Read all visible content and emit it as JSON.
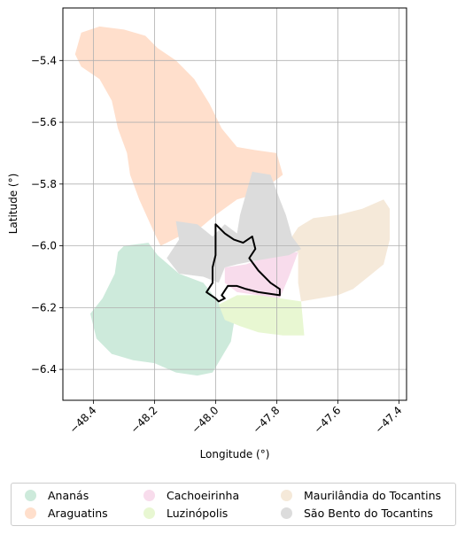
{
  "chart_data": {
    "type": "map",
    "xlabel": "Longitude (°)",
    "ylabel": "Latitude (°)",
    "xlim": [
      -48.5,
      -47.375
    ],
    "ylim": [
      -6.5,
      -5.23
    ],
    "x_ticks": [
      -48.4,
      -48.2,
      -48.0,
      -47.8,
      -47.6,
      -47.4
    ],
    "y_ticks": [
      -5.4,
      -5.6,
      -5.8,
      -6.0,
      -6.2,
      -6.4
    ],
    "x_tick_labels": [
      "−48.4",
      "−48.2",
      "−48.0",
      "−47.8",
      "−47.6",
      "−47.4"
    ],
    "y_tick_labels": [
      "−5.4",
      "−5.6",
      "−5.8",
      "−6.0",
      "−6.2",
      "−6.4"
    ],
    "grid": true,
    "legend_position": "bottom",
    "regions": [
      {
        "name": "Ananás",
        "color": "#cdeadb",
        "boundary": [
          [
            -48.3,
            -6.0
          ],
          [
            -48.22,
            -5.99
          ],
          [
            -48.19,
            -6.03
          ],
          [
            -48.12,
            -6.09
          ],
          [
            -48.04,
            -6.12
          ],
          [
            -48.0,
            -6.17
          ],
          [
            -47.98,
            -6.2
          ],
          [
            -47.94,
            -6.25
          ],
          [
            -47.95,
            -6.31
          ],
          [
            -47.98,
            -6.36
          ],
          [
            -48.01,
            -6.41
          ],
          [
            -48.06,
            -6.42
          ],
          [
            -48.13,
            -6.41
          ],
          [
            -48.2,
            -6.38
          ],
          [
            -48.27,
            -6.37
          ],
          [
            -48.34,
            -6.35
          ],
          [
            -48.39,
            -6.3
          ],
          [
            -48.41,
            -6.22
          ],
          [
            -48.37,
            -6.17
          ],
          [
            -48.33,
            -6.09
          ],
          [
            -48.32,
            -6.02
          ]
        ]
      },
      {
        "name": "Araguatins",
        "color": "#ffdfcc",
        "boundary": [
          [
            -48.46,
            -5.38
          ],
          [
            -48.44,
            -5.31
          ],
          [
            -48.38,
            -5.29
          ],
          [
            -48.3,
            -5.3
          ],
          [
            -48.23,
            -5.32
          ],
          [
            -48.19,
            -5.36
          ],
          [
            -48.13,
            -5.4
          ],
          [
            -48.07,
            -5.46
          ],
          [
            -48.02,
            -5.54
          ],
          [
            -47.98,
            -5.62
          ],
          [
            -47.93,
            -5.68
          ],
          [
            -47.87,
            -5.69
          ],
          [
            -47.8,
            -5.7
          ],
          [
            -47.78,
            -5.77
          ],
          [
            -47.82,
            -5.8
          ],
          [
            -47.86,
            -5.83
          ],
          [
            -47.93,
            -5.85
          ],
          [
            -48.0,
            -5.9
          ],
          [
            -48.06,
            -5.95
          ],
          [
            -48.12,
            -5.97
          ],
          [
            -48.18,
            -6.0
          ],
          [
            -48.2,
            -5.96
          ],
          [
            -48.25,
            -5.85
          ],
          [
            -48.28,
            -5.77
          ],
          [
            -48.29,
            -5.7
          ],
          [
            -48.32,
            -5.62
          ],
          [
            -48.34,
            -5.53
          ],
          [
            -48.38,
            -5.46
          ],
          [
            -48.44,
            -5.42
          ]
        ]
      },
      {
        "name": "Cachoeirinha",
        "color": "#f8dcec",
        "boundary": [
          [
            -47.97,
            -6.07
          ],
          [
            -47.9,
            -6.06
          ],
          [
            -47.82,
            -6.03
          ],
          [
            -47.73,
            -6.02
          ],
          [
            -47.76,
            -6.1
          ],
          [
            -47.79,
            -6.17
          ],
          [
            -47.86,
            -6.16
          ],
          [
            -47.93,
            -6.15
          ],
          [
            -47.97,
            -6.12
          ]
        ]
      },
      {
        "name": "Luzinópolis",
        "color": "#e8f7d2",
        "boundary": [
          [
            -47.99,
            -6.19
          ],
          [
            -47.93,
            -6.16
          ],
          [
            -47.86,
            -6.16
          ],
          [
            -47.79,
            -6.17
          ],
          [
            -47.72,
            -6.18
          ],
          [
            -47.71,
            -6.29
          ],
          [
            -47.78,
            -6.29
          ],
          [
            -47.86,
            -6.28
          ],
          [
            -47.92,
            -6.26
          ],
          [
            -47.97,
            -6.24
          ]
        ]
      },
      {
        "name": "Maurilândia do Tocantins",
        "color": "#f5e9d9",
        "boundary": [
          [
            -47.77,
            -6.0
          ],
          [
            -47.73,
            -5.94
          ],
          [
            -47.68,
            -5.91
          ],
          [
            -47.6,
            -5.9
          ],
          [
            -47.52,
            -5.88
          ],
          [
            -47.45,
            -5.85
          ],
          [
            -47.43,
            -5.88
          ],
          [
            -47.43,
            -5.98
          ],
          [
            -47.45,
            -6.06
          ],
          [
            -47.5,
            -6.1
          ],
          [
            -47.55,
            -6.14
          ],
          [
            -47.6,
            -6.16
          ],
          [
            -47.66,
            -6.17
          ],
          [
            -47.72,
            -6.18
          ],
          [
            -47.73,
            -6.12
          ],
          [
            -47.73,
            -6.02
          ]
        ]
      },
      {
        "name": "São Bento do Tocantins",
        "color": "#dcdcdc",
        "boundary": [
          [
            -48.13,
            -5.92
          ],
          [
            -48.06,
            -5.93
          ],
          [
            -48.01,
            -5.97
          ],
          [
            -47.97,
            -5.93
          ],
          [
            -47.93,
            -5.96
          ],
          [
            -47.92,
            -5.9
          ],
          [
            -47.9,
            -5.83
          ],
          [
            -47.88,
            -5.76
          ],
          [
            -47.82,
            -5.77
          ],
          [
            -47.79,
            -5.85
          ],
          [
            -47.77,
            -5.9
          ],
          [
            -47.75,
            -5.97
          ],
          [
            -47.72,
            -6.01
          ],
          [
            -47.76,
            -6.03
          ],
          [
            -47.82,
            -6.04
          ],
          [
            -47.88,
            -6.05
          ],
          [
            -47.93,
            -6.06
          ],
          [
            -47.97,
            -6.07
          ],
          [
            -47.99,
            -6.12
          ],
          [
            -48.04,
            -6.1
          ],
          [
            -48.12,
            -6.09
          ],
          [
            -48.16,
            -6.04
          ],
          [
            -48.12,
            -5.98
          ]
        ]
      }
    ],
    "highlight_outline": [
      [
        -48.0,
        -5.93
      ],
      [
        -47.97,
        -5.96
      ],
      [
        -47.94,
        -5.98
      ],
      [
        -47.91,
        -5.99
      ],
      [
        -47.88,
        -5.97
      ],
      [
        -47.87,
        -6.01
      ],
      [
        -47.89,
        -6.04
      ],
      [
        -47.86,
        -6.08
      ],
      [
        -47.82,
        -6.12
      ],
      [
        -47.79,
        -6.14
      ],
      [
        -47.79,
        -6.16
      ],
      [
        -47.86,
        -6.15
      ],
      [
        -47.9,
        -6.14
      ],
      [
        -47.93,
        -6.13
      ],
      [
        -47.96,
        -6.13
      ],
      [
        -47.98,
        -6.16
      ],
      [
        -47.97,
        -6.17
      ],
      [
        -47.99,
        -6.18
      ],
      [
        -48.0,
        -6.17
      ],
      [
        -48.03,
        -6.15
      ],
      [
        -48.01,
        -6.12
      ],
      [
        -48.01,
        -6.07
      ],
      [
        -48.0,
        -6.03
      ]
    ]
  }
}
